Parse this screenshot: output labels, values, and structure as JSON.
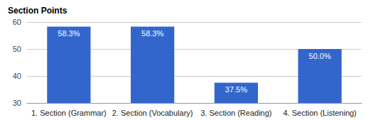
{
  "chart_data": {
    "type": "bar",
    "title": "Section Points",
    "categories": [
      "1. Section (Grammar)",
      "2. Section (Vocabulary)",
      "3. Section (Reading)",
      "4. Section (Listening)"
    ],
    "values": [
      58.3,
      58.3,
      37.5,
      50.0
    ],
    "value_labels": [
      "58.3%",
      "58.3%",
      "37.5%",
      "50.0%"
    ],
    "data_labels": true,
    "color": "#3366cc",
    "ylim": [
      30,
      60
    ],
    "yticks": [
      30,
      40,
      50,
      60
    ],
    "grid": true
  }
}
